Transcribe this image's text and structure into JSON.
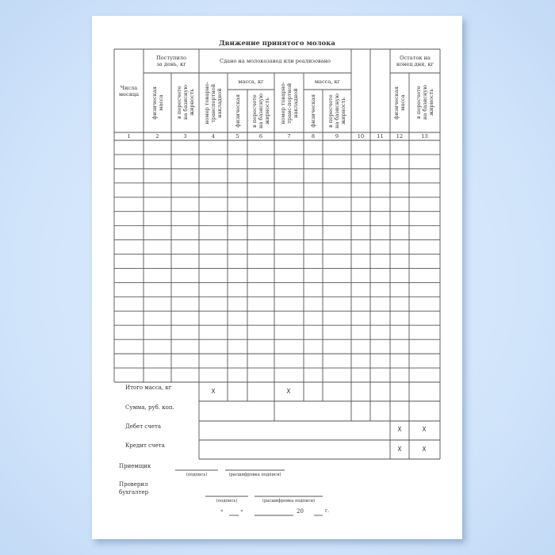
{
  "title": "Движение принятого молока",
  "colors": {
    "background": "#cfe3fa",
    "paper": "#ffffff",
    "lines": "#555555"
  },
  "header": {
    "day": "Числа\nмесяца",
    "received": "Поступило\nза день, кг",
    "received_physical": "физическая\nмасса",
    "received_base": "в пересчете\nна базисную\nжирность",
    "delivered": "Сдано на молокозавод или реализовано",
    "waybill_1": "номер товарно-\nтранспортной\nнакладной",
    "mass_1": "масса, кг",
    "mass_1_physical": "физическая",
    "mass_1_base": "в пересчете\nна базисную\nжирность",
    "waybill_2": "номер товарно-\nтранс-портной\nнакладной",
    "mass_2": "масса, кг",
    "mass_2_physical": "физическая",
    "mass_2_base": "в пересчете\nна базисную\nжирность",
    "balance": "Остаток на\nконец дня, кг",
    "balance_physical": "физическая\nмасса",
    "balance_base": "в пересчете\nна базисную\nжирность"
  },
  "column_numbers": [
    "1",
    "2",
    "3",
    "4",
    "5",
    "6",
    "7",
    "8",
    "9",
    "10",
    "11",
    "12",
    "13"
  ],
  "totals": {
    "total_mass": "Итого масса, кг",
    "sum": "Сумма, руб. коп.",
    "debit": "Дебет счета",
    "credit": "Кредит счета",
    "mark": "Х"
  },
  "signatures": {
    "receiver": "Приемщик",
    "accountant": "Проверил\nбухгалтер",
    "signature_caption": "(подпись)",
    "decoding_caption": "(расшифровка подписи)",
    "date_open_quote": "«",
    "date_close_quote": "»",
    "year_prefix": "20",
    "year_suffix": "г."
  }
}
